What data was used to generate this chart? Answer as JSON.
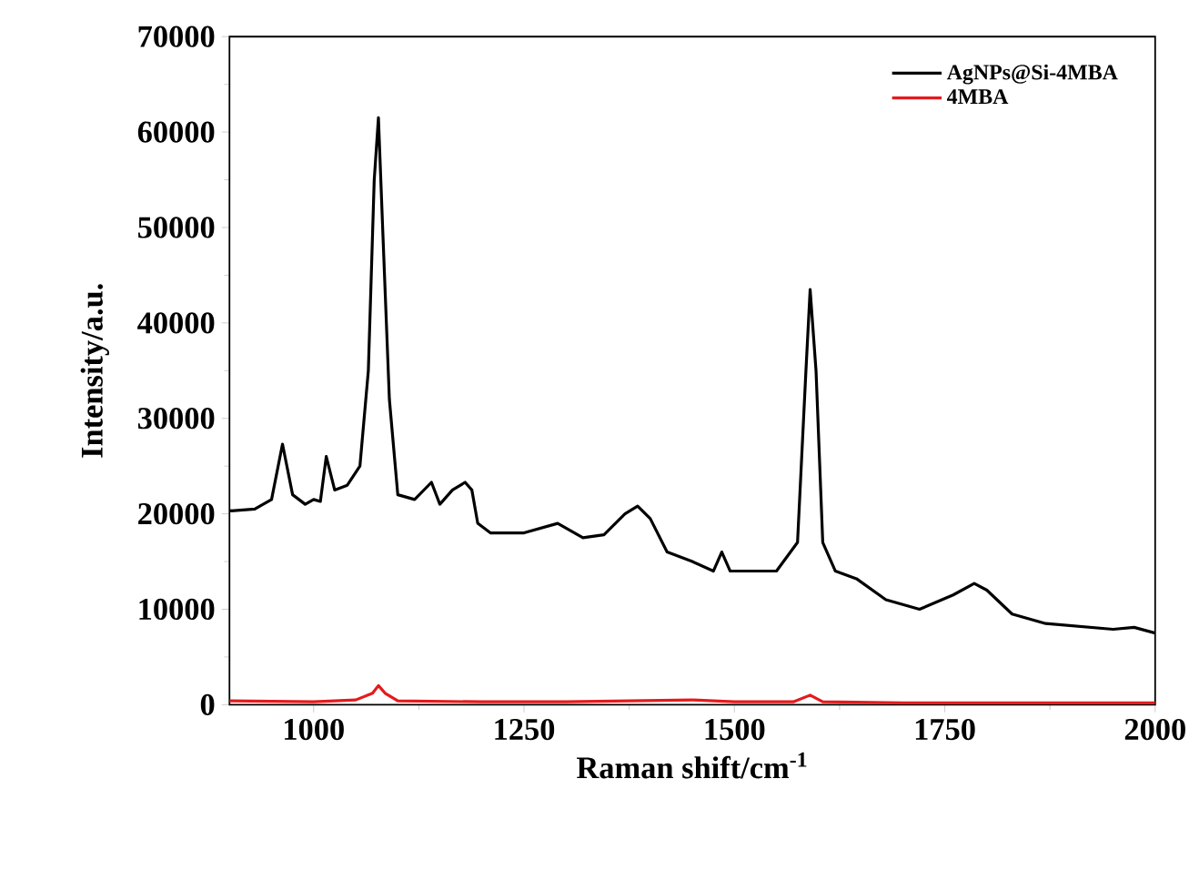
{
  "chart_data": {
    "type": "line",
    "xlabel": "Raman shift/cm$^{-1}$",
    "ylabel": "Intensity/a.u.",
    "xlim": [
      900,
      2000
    ],
    "xticks": [
      1000,
      1250,
      1500,
      1750,
      2000
    ],
    "ylim": [
      0,
      70000
    ],
    "yticks": [
      0,
      10000,
      20000,
      30000,
      40000,
      50000,
      60000,
      70000
    ],
    "legend": "top right",
    "grid": false,
    "series": [
      {
        "name": "AgNPs@Si-4MBA",
        "color": "#000000",
        "x": [
          900,
          930,
          950,
          963,
          975,
          990,
          1000,
          1008,
          1015,
          1025,
          1040,
          1055,
          1065,
          1072,
          1077,
          1082,
          1090,
          1100,
          1120,
          1140,
          1150,
          1165,
          1180,
          1188,
          1195,
          1210,
          1250,
          1290,
          1320,
          1345,
          1370,
          1385,
          1400,
          1420,
          1450,
          1475,
          1485,
          1495,
          1550,
          1575,
          1585,
          1590,
          1597,
          1605,
          1620,
          1645,
          1680,
          1720,
          1760,
          1785,
          1800,
          1830,
          1870,
          1950,
          1975,
          2000
        ],
        "values": [
          20300,
          20500,
          21500,
          27300,
          22000,
          21000,
          21500,
          21300,
          26000,
          22500,
          23000,
          25000,
          35000,
          55000,
          61500,
          50000,
          32000,
          22000,
          21500,
          23300,
          21000,
          22500,
          23300,
          22500,
          19000,
          18000,
          18000,
          19000,
          17500,
          17800,
          20000,
          20800,
          19500,
          16000,
          15000,
          14000,
          16000,
          14000,
          14000,
          17000,
          35000,
          43500,
          35000,
          17000,
          14000,
          13200,
          11000,
          10000,
          11500,
          12700,
          12000,
          9500,
          8500,
          7900,
          8100,
          7500
        ]
      },
      {
        "name": "4MBA",
        "color": "#e41a1c",
        "x": [
          900,
          1000,
          1050,
          1070,
          1077,
          1085,
          1100,
          1200,
          1300,
          1450,
          1500,
          1570,
          1590,
          1605,
          1700,
          1800,
          1900,
          2000
        ],
        "values": [
          400,
          300,
          500,
          1200,
          2000,
          1200,
          400,
          300,
          300,
          500,
          300,
          300,
          1000,
          300,
          200,
          200,
          200,
          200
        ]
      }
    ]
  }
}
